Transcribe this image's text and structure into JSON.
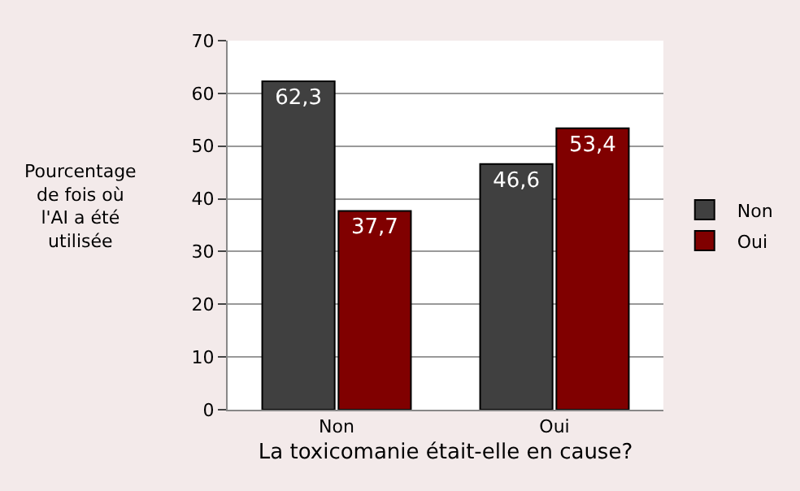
{
  "chart_data": {
    "type": "bar",
    "categories": [
      "Non",
      "Oui"
    ],
    "series": [
      {
        "name": "Non",
        "color": "#404040",
        "values": [
          62.3,
          46.6
        ],
        "value_labels": [
          "62,3",
          "46,6"
        ]
      },
      {
        "name": "Oui",
        "color": "#800000",
        "values": [
          37.7,
          53.4
        ],
        "value_labels": [
          "37,7",
          "53,4"
        ]
      }
    ],
    "ylabel": "Pourcentage\nde fois où\nl'AI a été\nutilisée",
    "xlabel": "La toxicomanie était-elle en cause?",
    "ylim": [
      0,
      70
    ],
    "yticks": [
      0,
      10,
      20,
      30,
      40,
      50,
      60,
      70
    ],
    "grid": "y",
    "legend": "right"
  }
}
